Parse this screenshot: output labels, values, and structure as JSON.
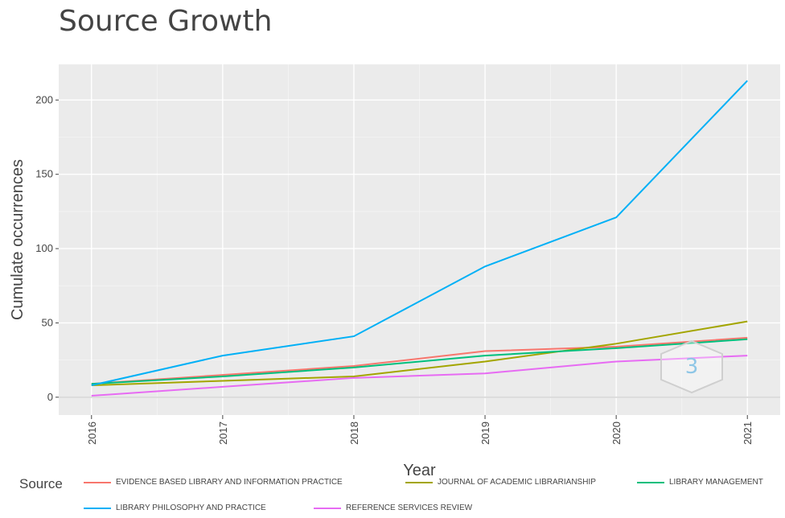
{
  "title": "Source Growth",
  "chart_data": {
    "type": "line",
    "title": "Source Growth",
    "xlabel": "Year",
    "ylabel": "Cumulate occurrences",
    "x": [
      2016,
      2017,
      2018,
      2019,
      2020,
      2021
    ],
    "xtick_labels": [
      "2016",
      "2017",
      "2018",
      "2019",
      "2020",
      "2021"
    ],
    "yticks": [
      0,
      50,
      100,
      150,
      200
    ],
    "ytick_labels": [
      "0",
      "50",
      "100",
      "150",
      "200"
    ],
    "ylim": [
      -12,
      224
    ],
    "grid": true,
    "legend_title": "Source",
    "legend_position": "bottom",
    "series": [
      {
        "name": "EVIDENCE BASED LIBRARY AND INFORMATION PRACTICE",
        "color": "#F8766D",
        "values": [
          9,
          15,
          21,
          31,
          34,
          40
        ]
      },
      {
        "name": "JOURNAL OF ACADEMIC LIBRARIANSHIP",
        "color": "#A3A500",
        "values": [
          8,
          11,
          14,
          24,
          36,
          51
        ]
      },
      {
        "name": "LIBRARY MANAGEMENT",
        "color": "#00BF7D",
        "values": [
          9,
          14,
          20,
          28,
          33,
          39
        ]
      },
      {
        "name": "LIBRARY PHILOSOPHY AND PRACTICE",
        "color": "#00B0F6",
        "values": [
          8,
          28,
          41,
          88,
          121,
          213
        ]
      },
      {
        "name": "REFERENCE SERVICES REVIEW",
        "color": "#E76BF3",
        "values": [
          1,
          7,
          13,
          16,
          24,
          28
        ]
      }
    ]
  },
  "watermark_icon": "hexagon-logo-icon"
}
